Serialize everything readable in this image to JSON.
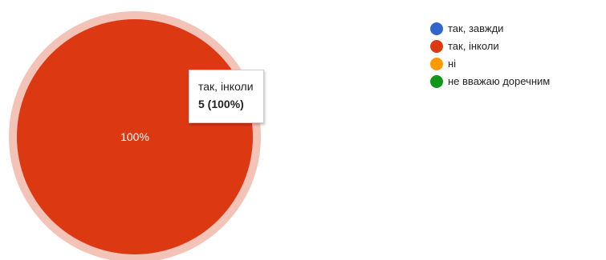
{
  "chart_data": {
    "type": "pie",
    "categories": [
      "так, завжди",
      "так, інколи",
      "ні",
      "не вважаю доречним"
    ],
    "values": [
      0,
      5,
      0,
      0
    ],
    "percentages": [
      0,
      100,
      0,
      0
    ],
    "colors": [
      "#3366cc",
      "#dc3912",
      "#ff9900",
      "#109618"
    ],
    "slice_labels": [
      "",
      "",
      "",
      ""
    ],
    "legend": {
      "position": "right",
      "entries": [
        "так, завжди",
        "так, інколи",
        "ні",
        "не вважаю доречним"
      ]
    },
    "highlighted_slice": 1,
    "tooltip": {
      "category": "так, інколи",
      "value": "5 (100%)"
    },
    "center_label": "100%"
  }
}
